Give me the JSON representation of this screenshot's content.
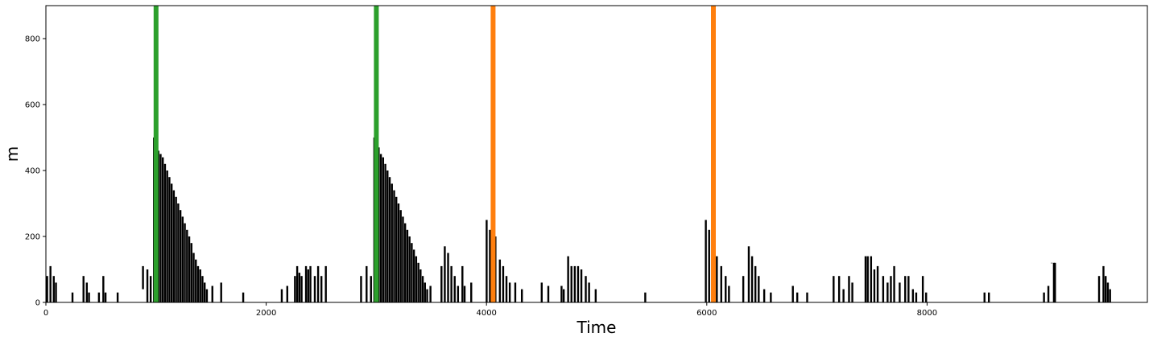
{
  "chart_data": {
    "type": "scatter",
    "title": "",
    "xlabel": "Time",
    "ylabel": "m",
    "xlim": [
      0,
      10000
    ],
    "ylim": [
      0,
      900
    ],
    "x_ticks": [
      0,
      2000,
      4000,
      6000,
      8000
    ],
    "y_ticks": [
      0,
      200,
      400,
      600,
      800
    ],
    "grid": false,
    "mark_color": "#000000",
    "vertical_lines": [
      {
        "x": 1000,
        "color": "#2ca02c"
      },
      {
        "x": 3000,
        "color": "#2ca02c"
      },
      {
        "x": 4060,
        "color": "#ff7f0e"
      },
      {
        "x": 6060,
        "color": "#ff7f0e"
      }
    ],
    "series": [
      {
        "marks": [
          [
            10,
            0,
            80
          ],
          [
            40,
            0,
            110
          ],
          [
            70,
            0,
            80
          ],
          [
            90,
            0,
            60
          ],
          [
            240,
            0,
            30
          ],
          [
            340,
            0,
            80
          ],
          [
            370,
            0,
            60
          ],
          [
            390,
            0,
            30
          ],
          [
            480,
            0,
            30
          ],
          [
            520,
            0,
            80
          ],
          [
            540,
            0,
            30
          ],
          [
            650,
            0,
            30
          ],
          [
            880,
            40,
            110
          ],
          [
            920,
            0,
            100
          ],
          [
            950,
            0,
            80
          ],
          [
            980,
            0,
            500
          ],
          [
            1000,
            0,
            480
          ],
          [
            1020,
            0,
            460
          ],
          [
            1040,
            0,
            450
          ],
          [
            1060,
            0,
            440
          ],
          [
            1080,
            0,
            420
          ],
          [
            1100,
            0,
            400
          ],
          [
            1120,
            0,
            380
          ],
          [
            1140,
            0,
            360
          ],
          [
            1160,
            0,
            340
          ],
          [
            1180,
            0,
            320
          ],
          [
            1200,
            0,
            300
          ],
          [
            1220,
            0,
            280
          ],
          [
            1240,
            0,
            260
          ],
          [
            1260,
            0,
            240
          ],
          [
            1280,
            0,
            220
          ],
          [
            1300,
            0,
            200
          ],
          [
            1320,
            0,
            180
          ],
          [
            1340,
            0,
            150
          ],
          [
            1360,
            0,
            130
          ],
          [
            1380,
            0,
            110
          ],
          [
            1400,
            0,
            100
          ],
          [
            1420,
            0,
            80
          ],
          [
            1440,
            0,
            60
          ],
          [
            1460,
            0,
            40
          ],
          [
            1510,
            0,
            50
          ],
          [
            1590,
            0,
            60
          ],
          [
            1790,
            0,
            30
          ],
          [
            2140,
            0,
            40
          ],
          [
            2190,
            0,
            50
          ],
          [
            2260,
            0,
            80
          ],
          [
            2280,
            0,
            110
          ],
          [
            2300,
            0,
            90
          ],
          [
            2320,
            0,
            80
          ],
          [
            2360,
            0,
            110
          ],
          [
            2380,
            0,
            100
          ],
          [
            2400,
            0,
            110
          ],
          [
            2440,
            0,
            80
          ],
          [
            2470,
            0,
            110
          ],
          [
            2500,
            0,
            80
          ],
          [
            2540,
            0,
            110
          ],
          [
            2860,
            0,
            80
          ],
          [
            2910,
            0,
            110
          ],
          [
            2950,
            0,
            80
          ],
          [
            2980,
            0,
            500
          ],
          [
            3000,
            0,
            490
          ],
          [
            3020,
            0,
            470
          ],
          [
            3040,
            0,
            450
          ],
          [
            3060,
            0,
            440
          ],
          [
            3080,
            0,
            420
          ],
          [
            3100,
            0,
            400
          ],
          [
            3120,
            0,
            380
          ],
          [
            3140,
            0,
            360
          ],
          [
            3160,
            0,
            340
          ],
          [
            3180,
            0,
            320
          ],
          [
            3200,
            0,
            300
          ],
          [
            3220,
            0,
            280
          ],
          [
            3240,
            0,
            260
          ],
          [
            3260,
            0,
            240
          ],
          [
            3280,
            0,
            220
          ],
          [
            3300,
            0,
            200
          ],
          [
            3320,
            0,
            180
          ],
          [
            3340,
            0,
            160
          ],
          [
            3360,
            0,
            140
          ],
          [
            3380,
            0,
            120
          ],
          [
            3400,
            0,
            100
          ],
          [
            3420,
            0,
            80
          ],
          [
            3440,
            0,
            60
          ],
          [
            3460,
            0,
            40
          ],
          [
            3490,
            0,
            50
          ],
          [
            3590,
            0,
            110
          ],
          [
            3620,
            0,
            170
          ],
          [
            3650,
            0,
            150
          ],
          [
            3680,
            0,
            110
          ],
          [
            3710,
            0,
            80
          ],
          [
            3740,
            0,
            50
          ],
          [
            3780,
            0,
            110
          ],
          [
            3800,
            0,
            50
          ],
          [
            3860,
            0,
            60
          ],
          [
            4000,
            0,
            250
          ],
          [
            4030,
            0,
            220
          ],
          [
            4080,
            0,
            200
          ],
          [
            4120,
            0,
            130
          ],
          [
            4150,
            0,
            110
          ],
          [
            4180,
            0,
            80
          ],
          [
            4210,
            0,
            60
          ],
          [
            4260,
            0,
            60
          ],
          [
            4320,
            0,
            40
          ],
          [
            4500,
            0,
            60
          ],
          [
            4560,
            0,
            50
          ],
          [
            4680,
            0,
            50
          ],
          [
            4700,
            0,
            40
          ],
          [
            4740,
            0,
            140
          ],
          [
            4770,
            0,
            110
          ],
          [
            4800,
            0,
            110
          ],
          [
            4830,
            0,
            110
          ],
          [
            4860,
            0,
            100
          ],
          [
            4900,
            0,
            80
          ],
          [
            4930,
            0,
            60
          ],
          [
            4990,
            0,
            40
          ],
          [
            5440,
            0,
            30
          ],
          [
            5990,
            0,
            250
          ],
          [
            6020,
            0,
            220
          ],
          [
            6090,
            0,
            140
          ],
          [
            6130,
            0,
            110
          ],
          [
            6170,
            0,
            80
          ],
          [
            6200,
            0,
            50
          ],
          [
            6330,
            0,
            80
          ],
          [
            6380,
            0,
            170
          ],
          [
            6410,
            0,
            140
          ],
          [
            6440,
            0,
            110
          ],
          [
            6470,
            0,
            80
          ],
          [
            6520,
            0,
            40
          ],
          [
            6580,
            0,
            30
          ],
          [
            6780,
            0,
            50
          ],
          [
            6820,
            0,
            30
          ],
          [
            6910,
            0,
            30
          ],
          [
            7150,
            0,
            80
          ],
          [
            7200,
            0,
            80
          ],
          [
            7240,
            0,
            40
          ],
          [
            7290,
            0,
            80
          ],
          [
            7320,
            0,
            60
          ],
          [
            7440,
            0,
            140
          ],
          [
            7460,
            0,
            140
          ],
          [
            7490,
            0,
            140
          ],
          [
            7520,
            0,
            100
          ],
          [
            7550,
            0,
            110
          ],
          [
            7600,
            0,
            80
          ],
          [
            7640,
            0,
            60
          ],
          [
            7670,
            0,
            80
          ],
          [
            7700,
            0,
            110
          ],
          [
            7750,
            0,
            60
          ],
          [
            7800,
            0,
            80
          ],
          [
            7830,
            0,
            80
          ],
          [
            7870,
            0,
            40
          ],
          [
            7900,
            0,
            30
          ],
          [
            7960,
            0,
            80
          ],
          [
            7990,
            0,
            30
          ],
          [
            8520,
            0,
            30
          ],
          [
            8560,
            0,
            30
          ],
          [
            9060,
            0,
            30
          ],
          [
            9100,
            0,
            50
          ],
          [
            9130,
            140,
            120
          ],
          [
            9150,
            0,
            120
          ],
          [
            9160,
            0,
            120
          ],
          [
            9560,
            0,
            80
          ],
          [
            9600,
            0,
            110
          ],
          [
            9620,
            0,
            80
          ],
          [
            9640,
            0,
            60
          ],
          [
            9660,
            0,
            40
          ]
        ]
      }
    ]
  }
}
